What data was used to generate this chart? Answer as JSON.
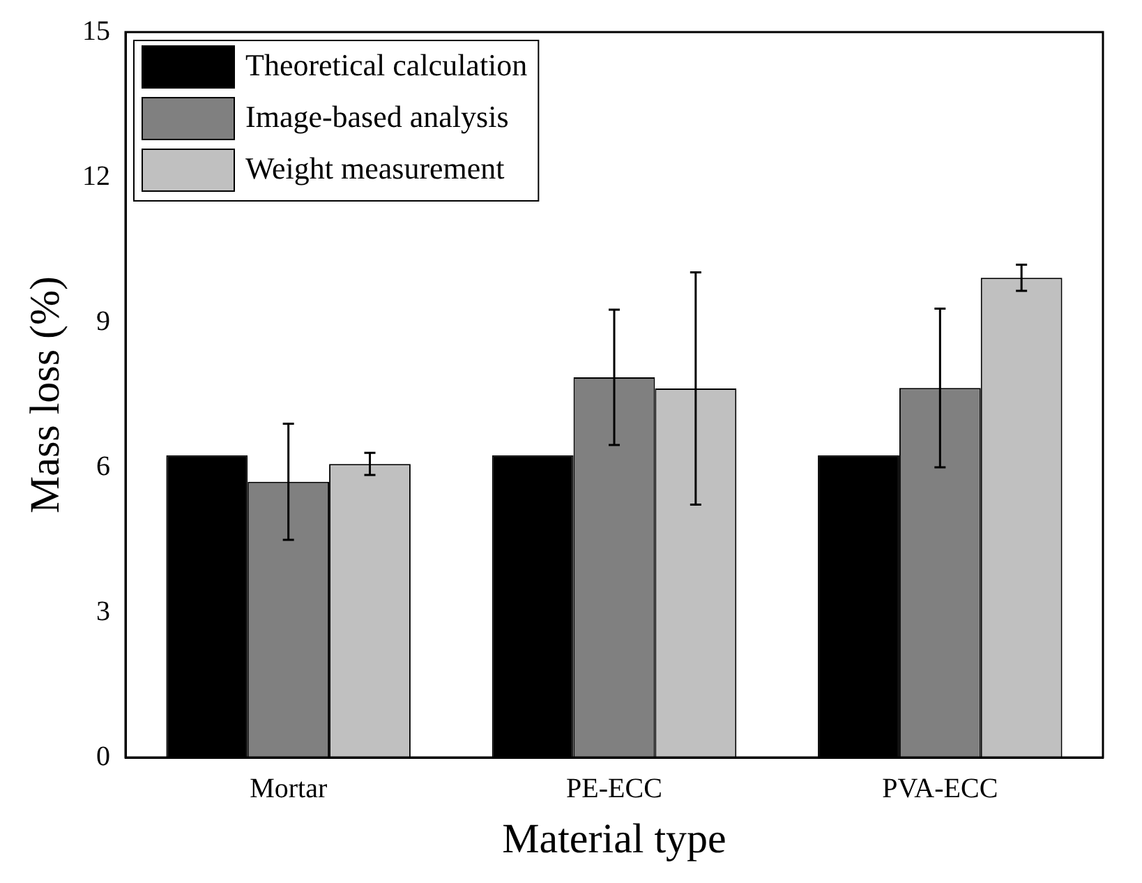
{
  "chart_data": {
    "type": "bar",
    "xlabel": "Material type",
    "ylabel": "Mass loss (%)",
    "categories": [
      "Mortar",
      "PE-ECC",
      "PVA-ECC"
    ],
    "series": [
      {
        "name": "Theoretical calculation",
        "color": "#000000",
        "values": [
          6.25,
          6.25,
          6.25
        ]
      },
      {
        "name": "Image-based analysis",
        "color": "#808080",
        "values": [
          5.7,
          7.86,
          7.64
        ],
        "errors": [
          1.2,
          1.4,
          1.64
        ]
      },
      {
        "name": "Weight measurement",
        "color": "#c0c0c0",
        "values": [
          6.07,
          7.63,
          9.92
        ],
        "errors": [
          0.23,
          2.4,
          0.27
        ]
      }
    ],
    "ylim": [
      0,
      15
    ],
    "yticks": [
      0,
      3,
      6,
      9,
      12,
      15
    ],
    "grid": false,
    "legend": "top left"
  }
}
